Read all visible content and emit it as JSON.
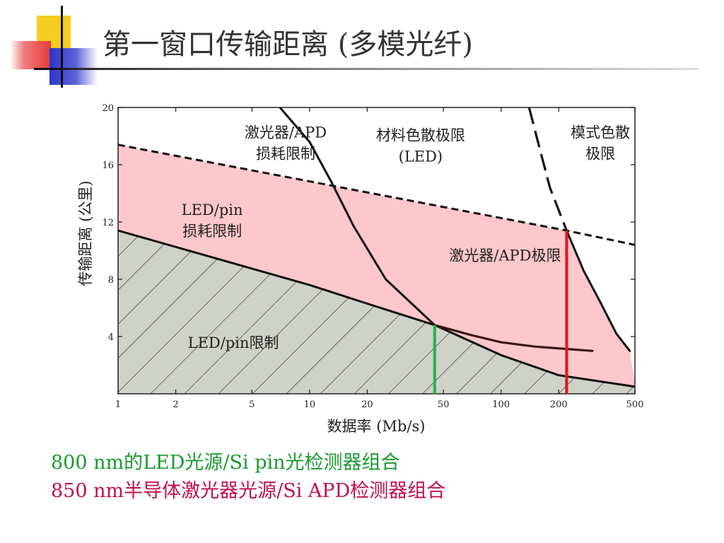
{
  "slide": {
    "title": "第一窗口传输距离 (多模光纤)",
    "captions": [
      {
        "text": "800 nm的LED光源/Si pin光检测器组合",
        "color": "#1a9a30"
      },
      {
        "text": "850 nm半导体激光器光源/Si APD检测器组合",
        "color": "#c0104a"
      }
    ]
  },
  "chart_data": {
    "type": "line",
    "x_scale": "log",
    "xlabel": "数据率 (Mb/s)",
    "ylabel": "传输距离 (公里)",
    "xlim": [
      1,
      500
    ],
    "ylim": [
      0,
      20
    ],
    "x_ticks": [
      1,
      2,
      5,
      10,
      20,
      50,
      100,
      200,
      500
    ],
    "y_ticks": [
      4,
      8,
      12,
      16,
      20
    ],
    "grid": false,
    "colors": {
      "hatched_region": "#cfd2c8",
      "pink_region": "#fec7cb",
      "led_marker": "#22b14c",
      "laser_marker": "#e0141e"
    },
    "series": [
      {
        "key": "laser_apd_loss",
        "style": "dashed",
        "x": [
          1,
          220,
          500
        ],
        "y": [
          17.4,
          11.4,
          10.4
        ]
      },
      {
        "key": "led_pin_loss",
        "style": "solid",
        "x": [
          1,
          10,
          20,
          45,
          100,
          200,
          500
        ],
        "y": [
          11.4,
          7.6,
          6.3,
          4.8,
          2.7,
          1.3,
          0.5
        ]
      },
      {
        "key": "material_dispersion_led",
        "style": "solid",
        "x": [
          7,
          10,
          13,
          17,
          25,
          45
        ],
        "y": [
          20,
          17.6,
          14.8,
          11.7,
          8.0,
          4.8
        ]
      },
      {
        "key": "led_extension",
        "style": "solid",
        "x": [
          45,
          70,
          100,
          150,
          300
        ],
        "y": [
          4.8,
          4.1,
          3.6,
          3.3,
          3.0
        ]
      },
      {
        "key": "modal_dispersion",
        "style": "long-dash",
        "x": [
          140,
          160,
          180,
          220
        ],
        "y": [
          20,
          17,
          14.4,
          11.4
        ]
      },
      {
        "key": "laser_limit_boundary",
        "style": "solid",
        "x": [
          220,
          270,
          330,
          400,
          470
        ],
        "y": [
          11.4,
          8.6,
          6.4,
          4.2,
          3.0
        ]
      }
    ],
    "markers": [
      {
        "key": "led_limit",
        "x": 45,
        "y_top": 4.8,
        "color": "#22b14c"
      },
      {
        "key": "laser_limit",
        "x": 220,
        "y_top": 11.4,
        "color": "#e0141e"
      }
    ],
    "annotations": [
      {
        "text": [
          "激光器/APD",
          "损耗限制"
        ],
        "x": 7.5,
        "y": 17.9
      },
      {
        "text": [
          "材料色散极限",
          "(LED)"
        ],
        "x": 38,
        "y": 17.7
      },
      {
        "text": [
          "模式色散",
          "极限"
        ],
        "x": 330,
        "y": 17.9
      },
      {
        "text": [
          "LED/pin",
          "损耗限制"
        ],
        "x": 3.1,
        "y": 12.5
      },
      {
        "text": [
          "激光器/APD极限"
        ],
        "x": 105,
        "y": 9.3
      },
      {
        "text": [
          "LED/pin限制"
        ],
        "x": 4.0,
        "y": 3.2
      }
    ]
  }
}
